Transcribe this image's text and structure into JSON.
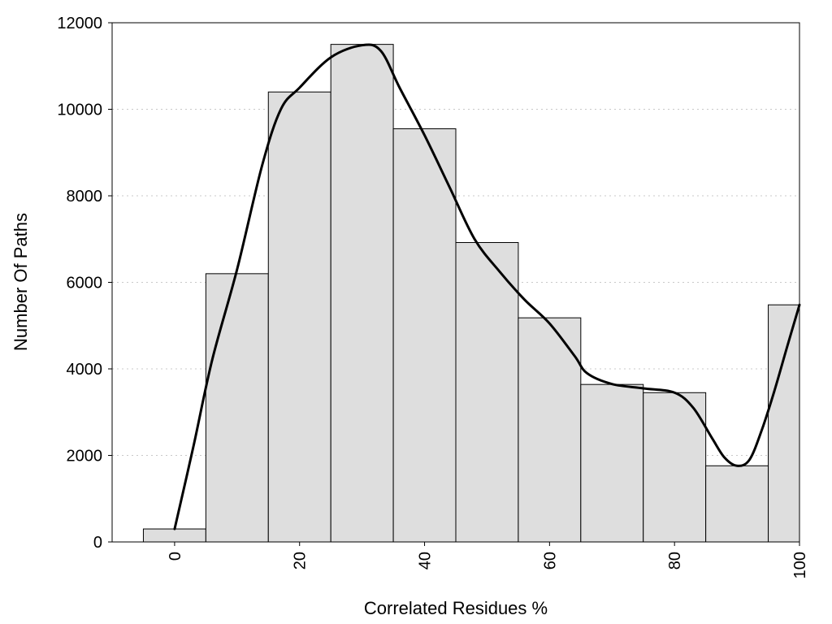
{
  "chart_data": {
    "type": "bar",
    "title": "",
    "xlabel": "Correlated Residues %",
    "ylabel": "Number Of Paths",
    "xlim": [
      -10,
      100
    ],
    "ylim": [
      0,
      12000
    ],
    "grid": true,
    "x_ticks": [
      0,
      20,
      40,
      60,
      80,
      100
    ],
    "y_ticks": [
      0,
      2000,
      4000,
      6000,
      8000,
      10000,
      12000
    ],
    "bin_width": 10,
    "bin_centers": [
      0,
      10,
      20,
      30,
      40,
      50,
      60,
      70,
      80,
      90,
      100
    ],
    "values": [
      300,
      6200,
      10400,
      11500,
      9550,
      6920,
      5180,
      3640,
      3450,
      1760,
      5480
    ],
    "density_curve": {
      "x": [
        0,
        3,
        6,
        10,
        14,
        17,
        20,
        25,
        30,
        33,
        36,
        40,
        44,
        48,
        52,
        56,
        60,
        64,
        66,
        70,
        75,
        80,
        83,
        86,
        88,
        90,
        92,
        94,
        96,
        98,
        100
      ],
      "y": [
        300,
        2200,
        4200,
        6300,
        8700,
        10000,
        10500,
        11200,
        11480,
        11350,
        10500,
        9400,
        8200,
        7000,
        6250,
        5600,
        5050,
        4300,
        3900,
        3650,
        3550,
        3450,
        3100,
        2400,
        1950,
        1760,
        1900,
        2600,
        3500,
        4500,
        5480
      ]
    }
  }
}
